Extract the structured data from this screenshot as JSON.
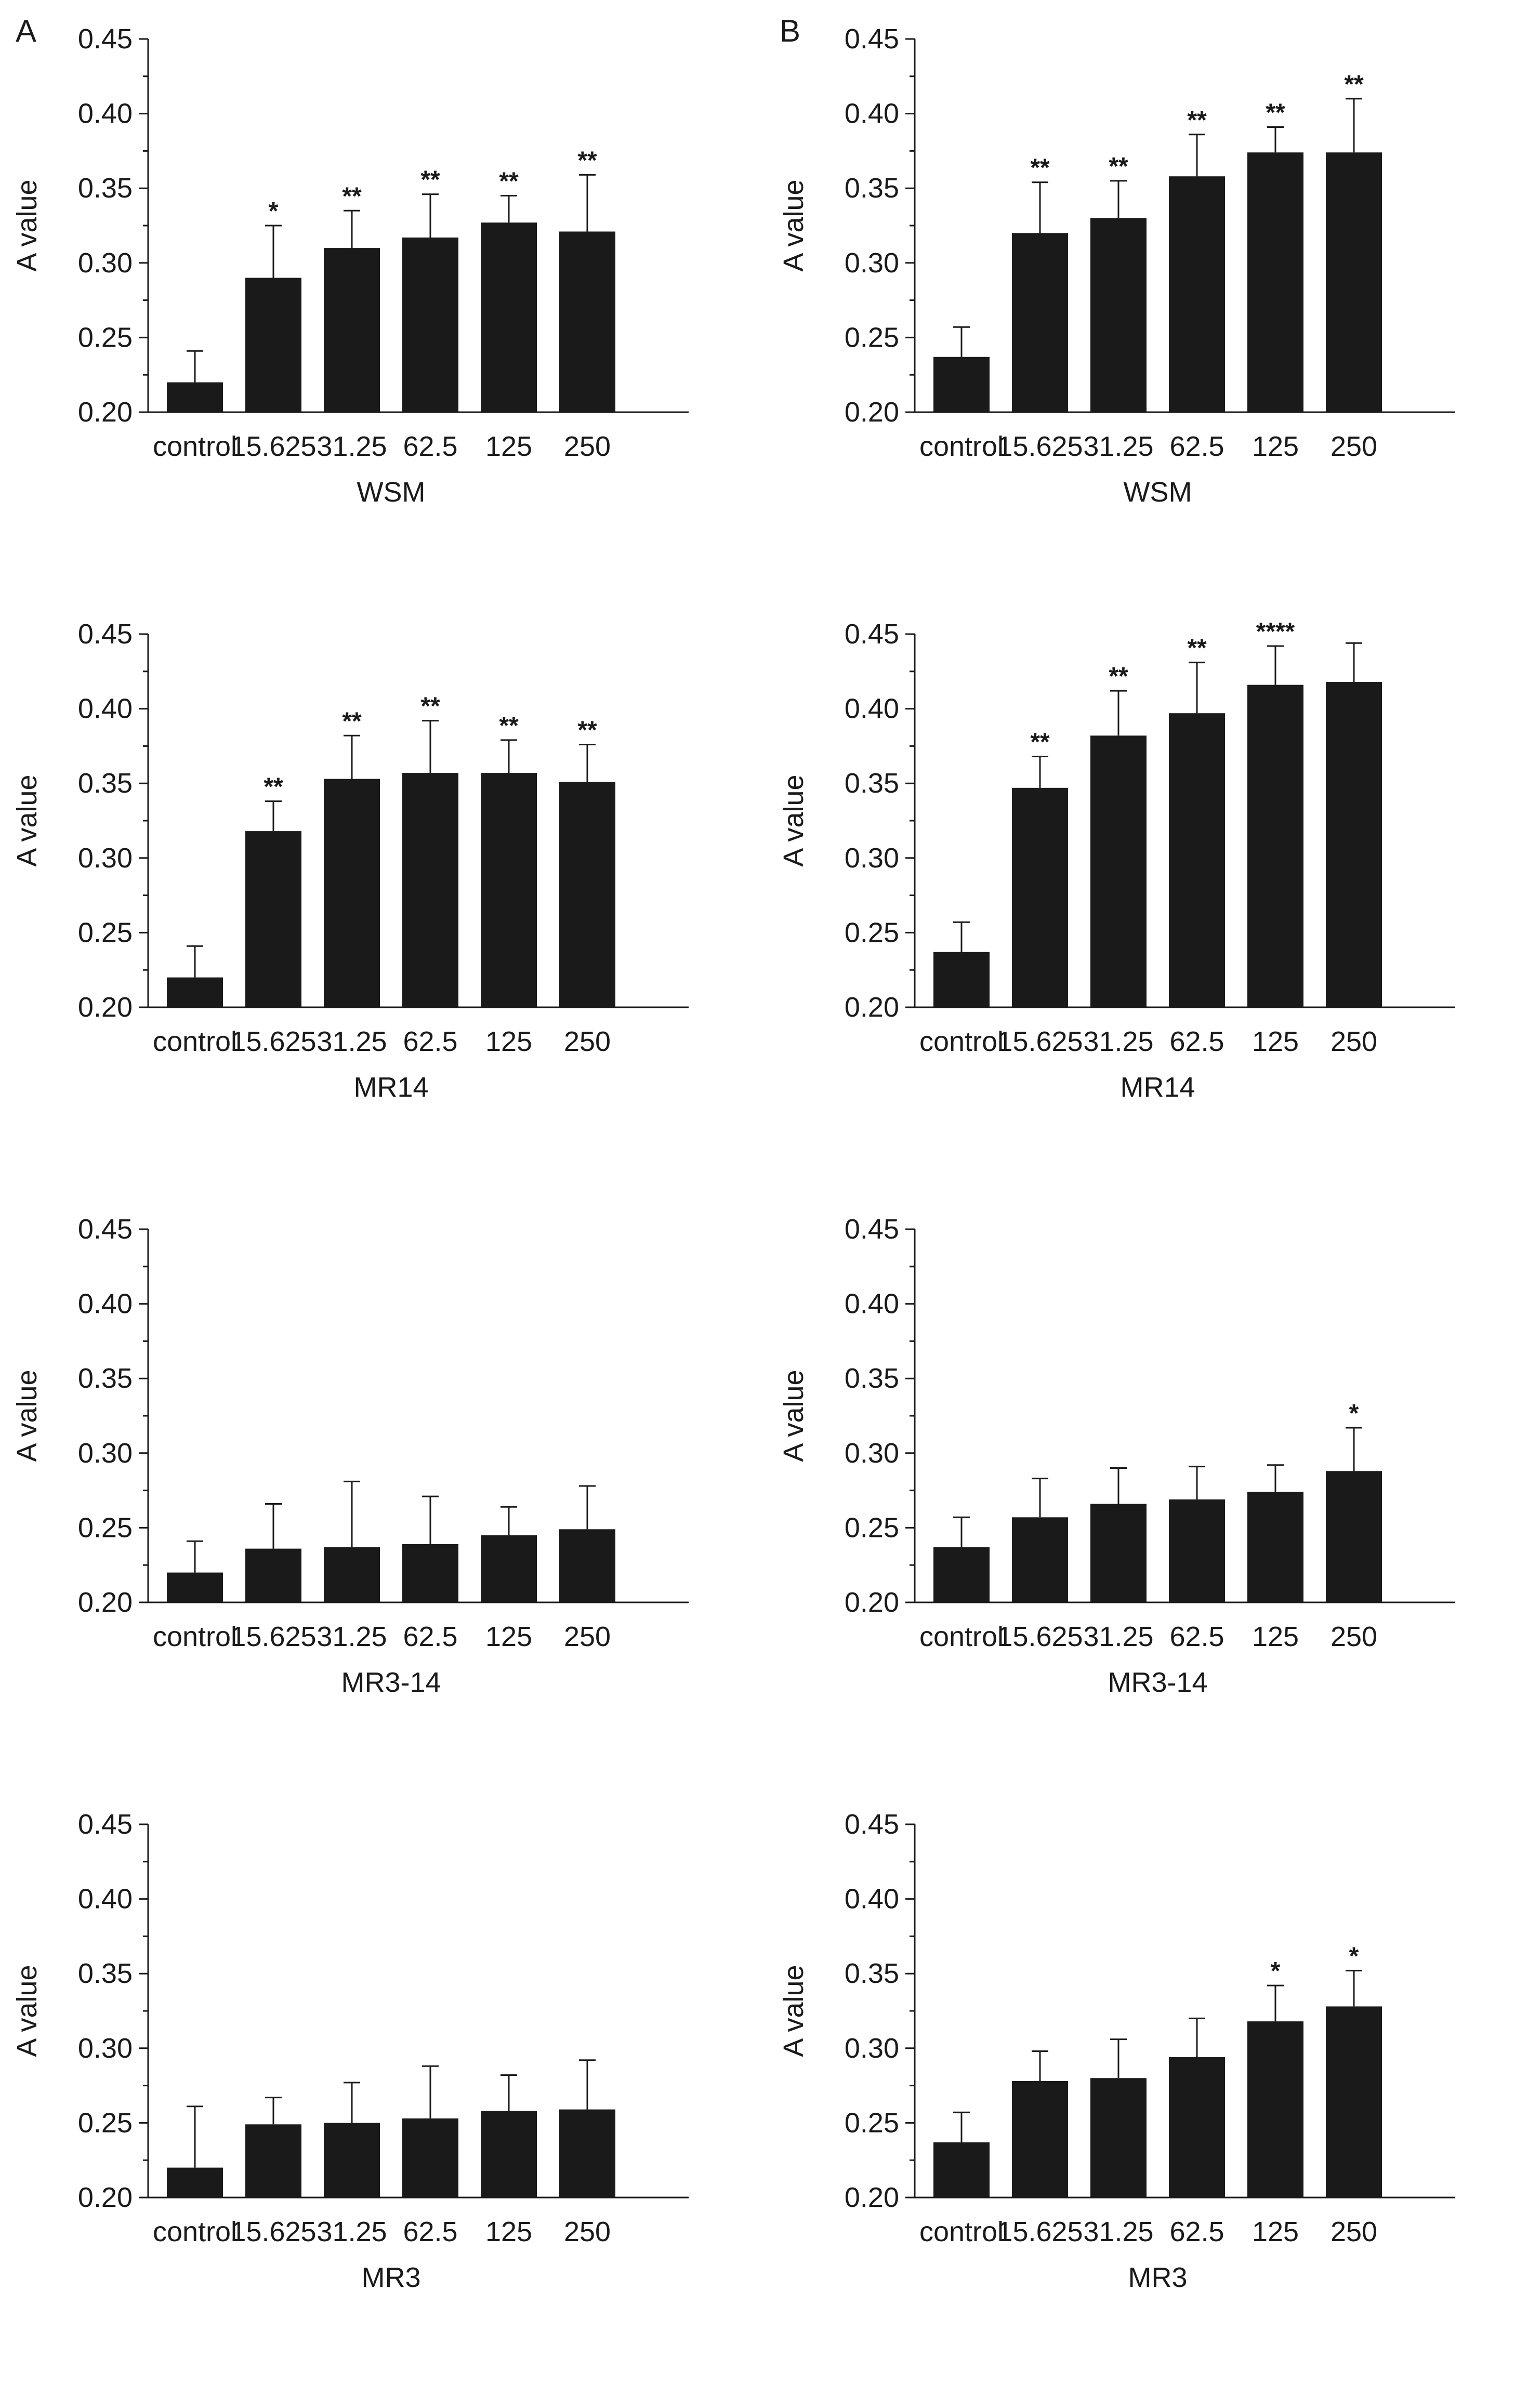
{
  "panel_labels": [
    "A",
    "B"
  ],
  "chart_data": [
    {
      "id": "A-WSM",
      "type": "bar",
      "column": "A",
      "row": 0,
      "title": "",
      "xlabel": "WSM",
      "ylabel": "A value",
      "ylim": [
        0.2,
        0.45
      ],
      "yticks": [
        "0.20",
        "0.25",
        "0.30",
        "0.35",
        "0.40",
        "0.45"
      ],
      "categories": [
        "control",
        "15.625",
        "31.25",
        "62.5",
        "125",
        "250"
      ],
      "values": [
        0.22,
        0.29,
        0.31,
        0.317,
        0.327,
        0.321
      ],
      "errors": [
        0.021,
        0.035,
        0.025,
        0.029,
        0.018,
        0.038
      ],
      "significance": [
        "",
        "*",
        "**",
        "**",
        "**",
        "**"
      ]
    },
    {
      "id": "B-WSM",
      "type": "bar",
      "column": "B",
      "row": 0,
      "title": "",
      "xlabel": "WSM",
      "ylabel": "A value",
      "ylim": [
        0.2,
        0.45
      ],
      "yticks": [
        "0.20",
        "0.25",
        "0.30",
        "0.35",
        "0.40",
        "0.45"
      ],
      "categories": [
        "control",
        "15.625",
        "31.25",
        "62.5",
        "125",
        "250"
      ],
      "values": [
        0.237,
        0.32,
        0.33,
        0.358,
        0.374,
        0.374
      ],
      "errors": [
        0.02,
        0.034,
        0.025,
        0.028,
        0.017,
        0.036
      ],
      "significance": [
        "",
        "**",
        "**",
        "**",
        "**",
        "**"
      ]
    },
    {
      "id": "A-MR14",
      "type": "bar",
      "column": "A",
      "row": 1,
      "title": "",
      "xlabel": "MR14",
      "ylabel": "A value",
      "ylim": [
        0.2,
        0.45
      ],
      "yticks": [
        "0.20",
        "0.25",
        "0.30",
        "0.35",
        "0.40",
        "0.45"
      ],
      "categories": [
        "control",
        "15.625",
        "31.25",
        "62.5",
        "125",
        "250"
      ],
      "values": [
        0.22,
        0.318,
        0.353,
        0.357,
        0.357,
        0.351
      ],
      "errors": [
        0.021,
        0.02,
        0.029,
        0.035,
        0.022,
        0.025
      ],
      "significance": [
        "",
        "**",
        "**",
        "**",
        "**",
        "**"
      ]
    },
    {
      "id": "B-MR14",
      "type": "bar",
      "column": "B",
      "row": 1,
      "title": "",
      "xlabel": "MR14",
      "ylabel": "A value",
      "ylim": [
        0.2,
        0.45
      ],
      "yticks": [
        "0.20",
        "0.25",
        "0.30",
        "0.35",
        "0.40",
        "0.45"
      ],
      "categories": [
        "control",
        "15.625",
        "31.25",
        "62.5",
        "125",
        "250"
      ],
      "values": [
        0.237,
        0.347,
        0.382,
        0.397,
        0.416,
        0.418
      ],
      "errors": [
        0.02,
        0.021,
        0.03,
        0.034,
        0.026,
        0.026
      ],
      "significance": [
        "",
        "**",
        "**",
        "**",
        "****",
        ""
      ]
    },
    {
      "id": "A-MR3-14",
      "type": "bar",
      "column": "A",
      "row": 2,
      "title": "",
      "xlabel": "MR3-14",
      "ylabel": "A value",
      "ylim": [
        0.2,
        0.45
      ],
      "yticks": [
        "0.20",
        "0.25",
        "0.30",
        "0.35",
        "0.40",
        "0.45"
      ],
      "categories": [
        "control",
        "15.625",
        "31.25",
        "62.5",
        "125",
        "250"
      ],
      "values": [
        0.22,
        0.236,
        0.237,
        0.239,
        0.245,
        0.249
      ],
      "errors": [
        0.021,
        0.03,
        0.044,
        0.032,
        0.019,
        0.029
      ],
      "significance": [
        "",
        "",
        "",
        "",
        "",
        ""
      ]
    },
    {
      "id": "B-MR3-14",
      "type": "bar",
      "column": "B",
      "row": 2,
      "title": "",
      "xlabel": "MR3-14",
      "ylabel": "A value",
      "ylim": [
        0.2,
        0.45
      ],
      "yticks": [
        "0.20",
        "0.25",
        "0.30",
        "0.35",
        "0.40",
        "0.45"
      ],
      "categories": [
        "control",
        "15.625",
        "31.25",
        "62.5",
        "125",
        "250"
      ],
      "values": [
        0.237,
        0.257,
        0.266,
        0.269,
        0.274,
        0.288
      ],
      "errors": [
        0.02,
        0.026,
        0.024,
        0.022,
        0.018,
        0.029
      ],
      "significance": [
        "",
        "",
        "",
        "",
        "",
        "*"
      ]
    },
    {
      "id": "A-MR3",
      "type": "bar",
      "column": "A",
      "row": 3,
      "title": "",
      "xlabel": "MR3",
      "ylabel": "A value",
      "ylim": [
        0.2,
        0.45
      ],
      "yticks": [
        "0.20",
        "0.25",
        "0.30",
        "0.35",
        "0.40",
        "0.45"
      ],
      "categories": [
        "control",
        "15.625",
        "31.25",
        "62.5",
        "125",
        "250"
      ],
      "values": [
        0.22,
        0.249,
        0.25,
        0.253,
        0.258,
        0.259
      ],
      "errors": [
        0.041,
        0.018,
        0.027,
        0.035,
        0.024,
        0.033
      ],
      "significance": [
        "",
        "",
        "",
        "",
        "",
        ""
      ]
    },
    {
      "id": "B-MR3",
      "type": "bar",
      "column": "B",
      "row": 3,
      "title": "",
      "xlabel": "MR3",
      "ylabel": "A value",
      "ylim": [
        0.2,
        0.45
      ],
      "yticks": [
        "0.20",
        "0.25",
        "0.30",
        "0.35",
        "0.40",
        "0.45"
      ],
      "categories": [
        "control",
        "15.625",
        "31.25",
        "62.5",
        "125",
        "250"
      ],
      "values": [
        0.237,
        0.278,
        0.28,
        0.294,
        0.318,
        0.328
      ],
      "errors": [
        0.02,
        0.02,
        0.026,
        0.026,
        0.024,
        0.024
      ],
      "significance": [
        "",
        "",
        "",
        "",
        "*",
        "*"
      ]
    }
  ]
}
